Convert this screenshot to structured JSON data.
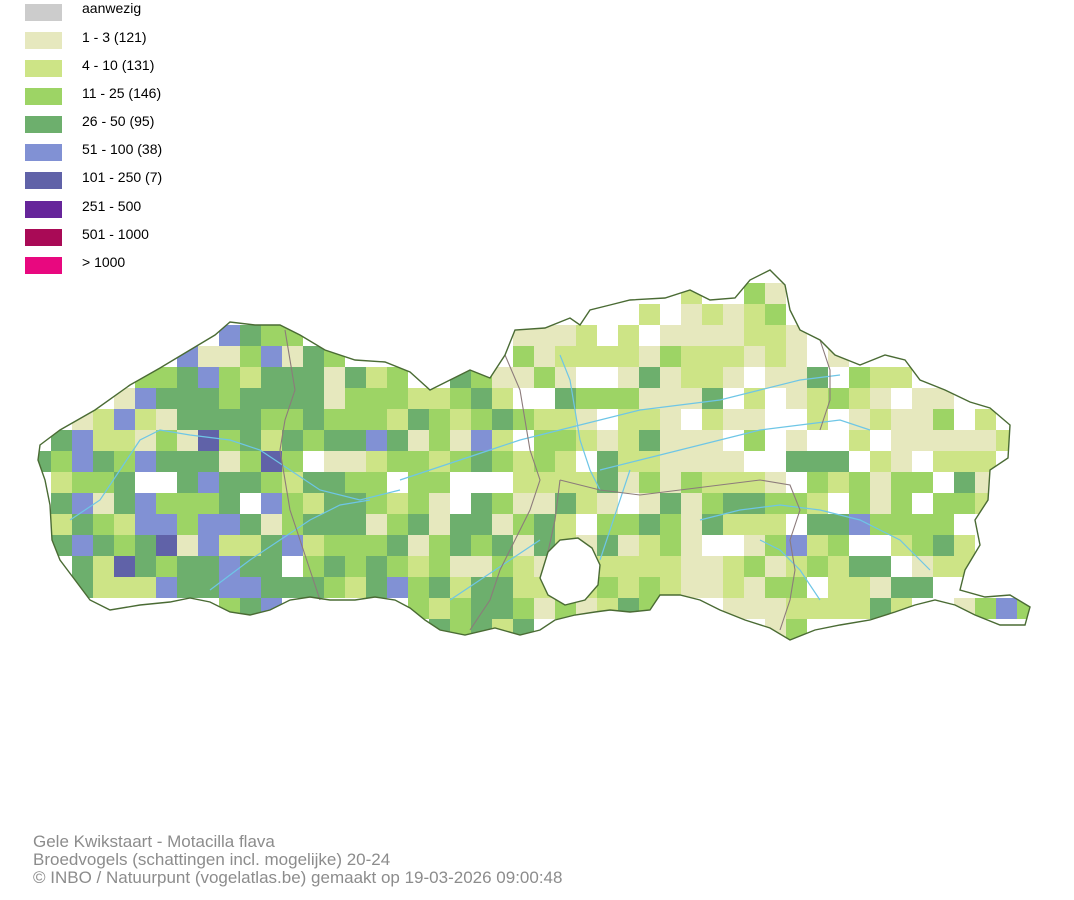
{
  "legend": {
    "items": [
      {
        "label": "aanwezig",
        "color": "#cccccc"
      },
      {
        "label": "1 - 3 (121)",
        "color": "#e6e8be"
      },
      {
        "label": "4 - 10 (131)",
        "color": "#cde486"
      },
      {
        "label": "11 - 25 (146)",
        "color": "#9dd465"
      },
      {
        "label": "26 - 50 (95)",
        "color": "#6daf6d"
      },
      {
        "label": "51 - 100 (38)",
        "color": "#8191d4"
      },
      {
        "label": "101 - 250 (7)",
        "color": "#6062a8"
      },
      {
        "label": "251 - 500",
        "color": "#66259a"
      },
      {
        "label": "501 - 1000",
        "color": "#a90a56"
      },
      {
        "label": "> 1000",
        "color": "#e8087f"
      }
    ]
  },
  "map": {
    "region": "Vlaanderen",
    "border_color": "#4a6b34",
    "province_border_color": "#8c7b7b",
    "river_color": "#6ec6e6"
  },
  "credits": {
    "line1": "Gele Kwikstaart - Motacilla flava",
    "line2": "Broedvogels (schattingen incl. mogelijke) 20-24",
    "line3": "© INBO / Natuurpunt (vogelatlas.be) gemaakt op 19-03-2026 09:00:48"
  }
}
